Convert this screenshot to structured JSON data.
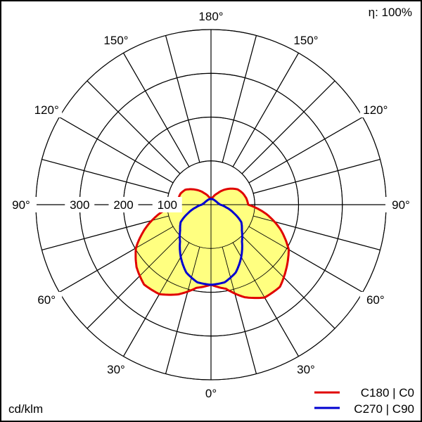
{
  "chart_data": {
    "type": "polar",
    "unit_label": "cd/klm",
    "efficiency_label": "η: 100%",
    "radial_ticks": [
      100,
      200,
      300
    ],
    "radial_tick_labels": [
      "100",
      "200",
      "300"
    ],
    "r_max": 400,
    "angle_labels": [
      "180°",
      "150°",
      "150°",
      "120°",
      "120°",
      "90°",
      "90°",
      "60°",
      "60°",
      "30°",
      "30°",
      "0°"
    ],
    "grid": true,
    "legend_position": "bottom-right",
    "angles": [
      0,
      10,
      20,
      30,
      40,
      50,
      60,
      70,
      80,
      90,
      100,
      110,
      120,
      135,
      150,
      165,
      180
    ],
    "series": [
      {
        "name": "C180 | C0",
        "color": "#e00000",
        "fill": "#ffff80",
        "right_plane": "C0",
        "left_plane": "C180",
        "right_values": [
          183,
          195,
          225,
          245,
          245,
          225,
          205,
          170,
          130,
          85,
          82,
          77,
          70,
          50,
          30,
          18,
          13
        ],
        "left_values": [
          183,
          193,
          218,
          236,
          238,
          222,
          198,
          160,
          120,
          78,
          76,
          74,
          68,
          48,
          30,
          18,
          13
        ]
      },
      {
        "name": "C270 | C90",
        "color": "#0000d0",
        "right_plane": "C90",
        "left_plane": "C270",
        "right_values": [
          183,
          180,
          165,
          138,
          110,
          92,
          80,
          55,
          35,
          21,
          17,
          15,
          14,
          13,
          13,
          13,
          13
        ],
        "left_values": [
          183,
          180,
          165,
          138,
          110,
          92,
          80,
          55,
          35,
          21,
          17,
          15,
          14,
          13,
          13,
          13,
          13
        ]
      }
    ]
  }
}
